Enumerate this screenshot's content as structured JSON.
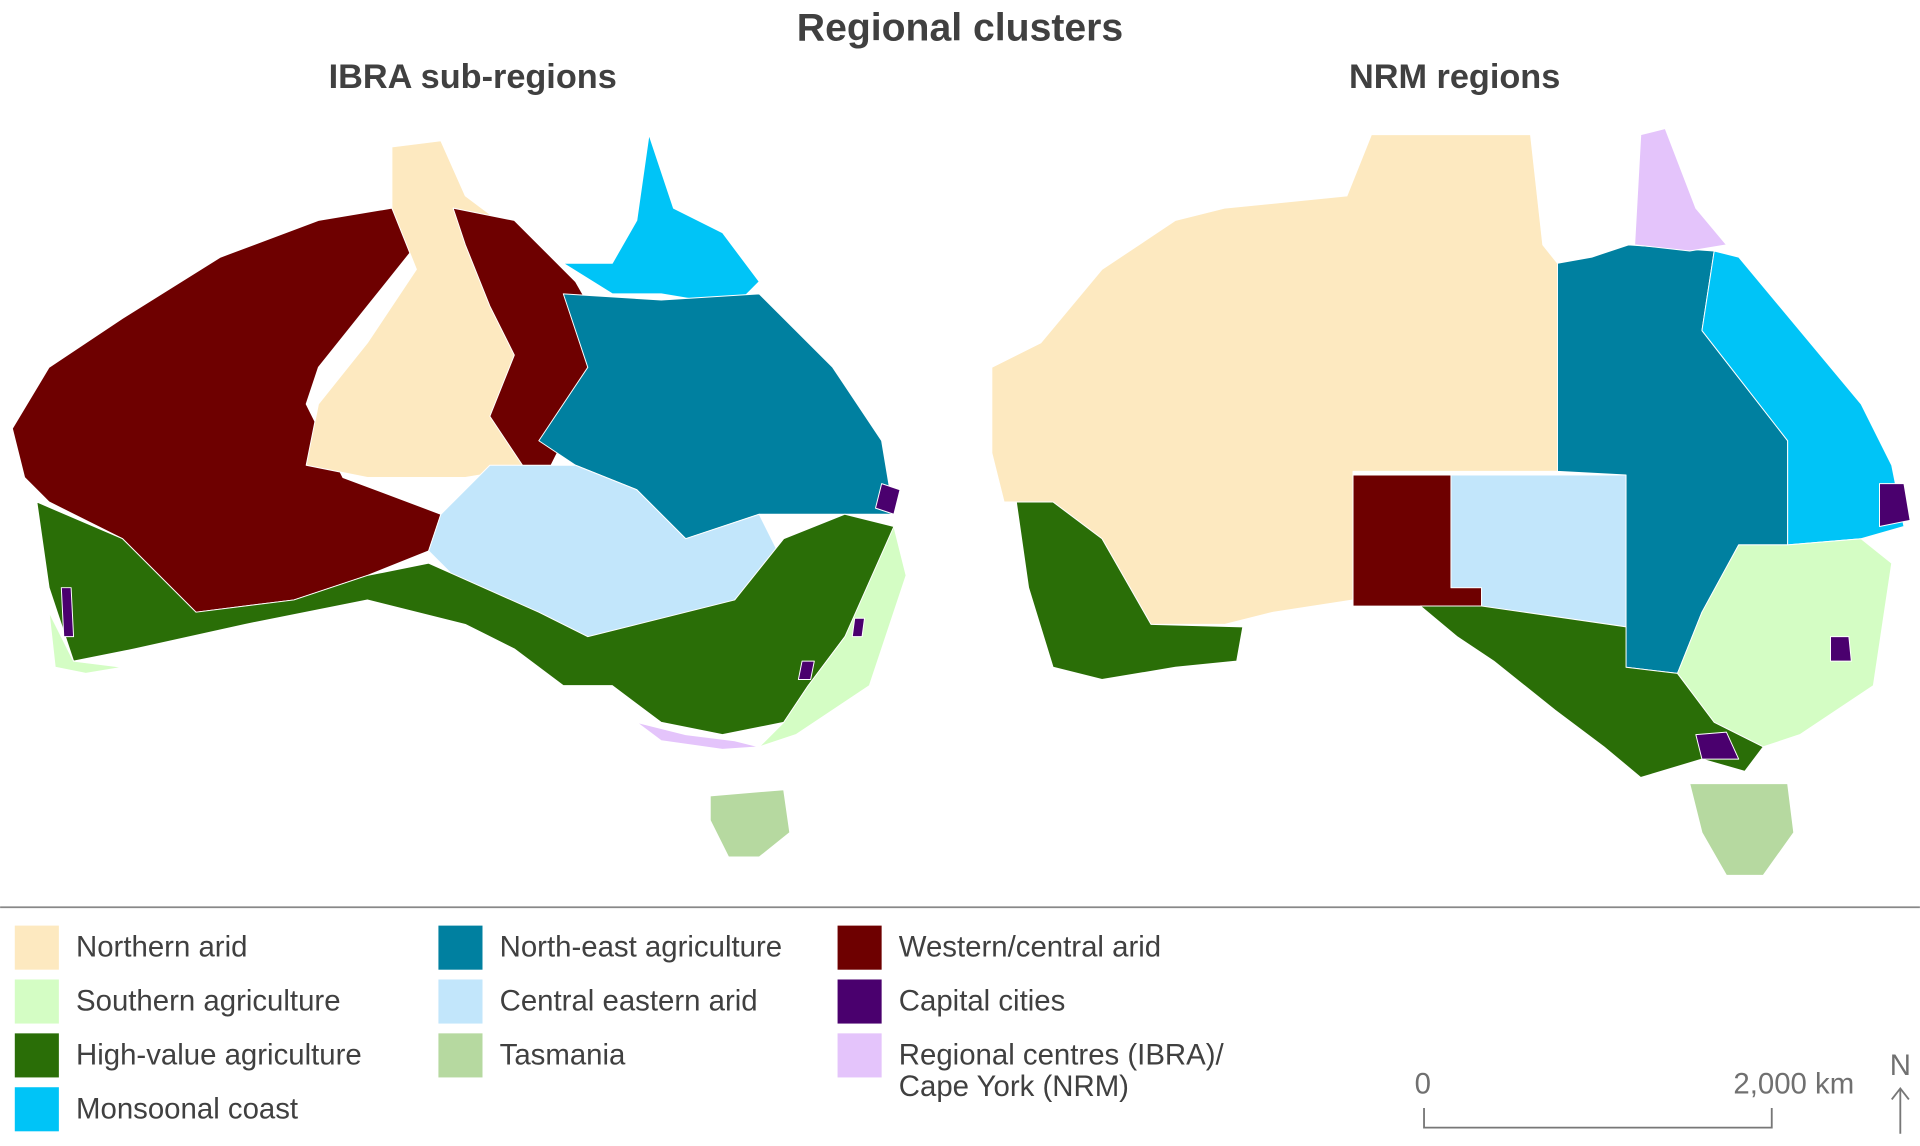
{
  "title": "Regional clusters",
  "maps": [
    {
      "title": "IBRA sub-regions"
    },
    {
      "title": "NRM regions"
    }
  ],
  "legend": {
    "items": [
      {
        "label": "Northern arid",
        "color": "#fde9c0"
      },
      {
        "label": "Southern agriculture",
        "color": "#d4fdc4"
      },
      {
        "label": "High-value agriculture",
        "color": "#2a6e07"
      },
      {
        "label": "Monsoonal coast",
        "color": "#00c4f7"
      },
      {
        "label": "North-east agriculture",
        "color": "#0080a0"
      },
      {
        "label": "Central eastern arid",
        "color": "#c2e6fb"
      },
      {
        "label": "Tasmania",
        "color": "#b6d9a0"
      },
      {
        "label": "Western/central arid",
        "color": "#6e0000"
      },
      {
        "label": "Capital cities",
        "color": "#4a006e"
      },
      {
        "label": [
          "Regional centres (IBRA)/",
          "Cape York (NRM)"
        ],
        "color": "#e4c4fb"
      }
    ]
  },
  "scale_bar": {
    "start": "0",
    "end": "2,000 km"
  },
  "north_arrow": "N"
}
